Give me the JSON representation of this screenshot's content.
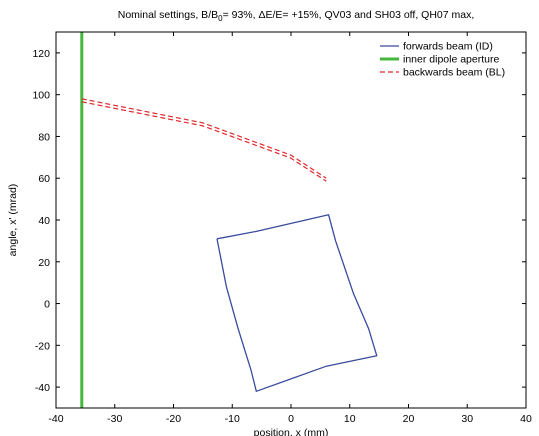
{
  "chart_data": {
    "type": "line",
    "title": {
      "prefix": "Nominal settings, B/B",
      "sub": "0",
      "suffix": "= 93%, ΔE/E= +15%, QV03 and SH03 off, QH07 max,"
    },
    "xlabel": "position, x (mm)",
    "ylabel": "angle, x' (mrad)",
    "xlim": [
      -40,
      40
    ],
    "ylim": [
      -50,
      130
    ],
    "xticks": [
      -40,
      -30,
      -20,
      -10,
      0,
      10,
      20,
      30,
      40
    ],
    "yticks": [
      -40,
      -20,
      0,
      20,
      40,
      60,
      80,
      100,
      120
    ],
    "grid": false,
    "legend_position": "top-right",
    "series": [
      {
        "name": "forwards beam (ID)",
        "color": "#3a4b9e",
        "style": "solid",
        "x": [
          -12.6,
          -6.0,
          6.4,
          7.6,
          10.6,
          13.2,
          14.6,
          6.0,
          -5.9,
          -6.8,
          -9.0,
          -11.0,
          -12.6
        ],
        "y": [
          31,
          34.5,
          42.5,
          30,
          5,
          -12,
          -25,
          -30,
          -42,
          -32,
          -12,
          8,
          31
        ]
      },
      {
        "name": "inner dipole aperture",
        "color": "#45b73c",
        "style": "solid",
        "x": [
          -35.6,
          -35.6
        ],
        "y": [
          -50,
          130
        ]
      },
      {
        "name": "backwards beam (BL)",
        "color": "#e0282e",
        "style": "dashed",
        "x": [
          -35.6,
          -15,
          0,
          6
        ],
        "y": [
          98,
          86.5,
          71,
          60
        ]
      }
    ]
  }
}
